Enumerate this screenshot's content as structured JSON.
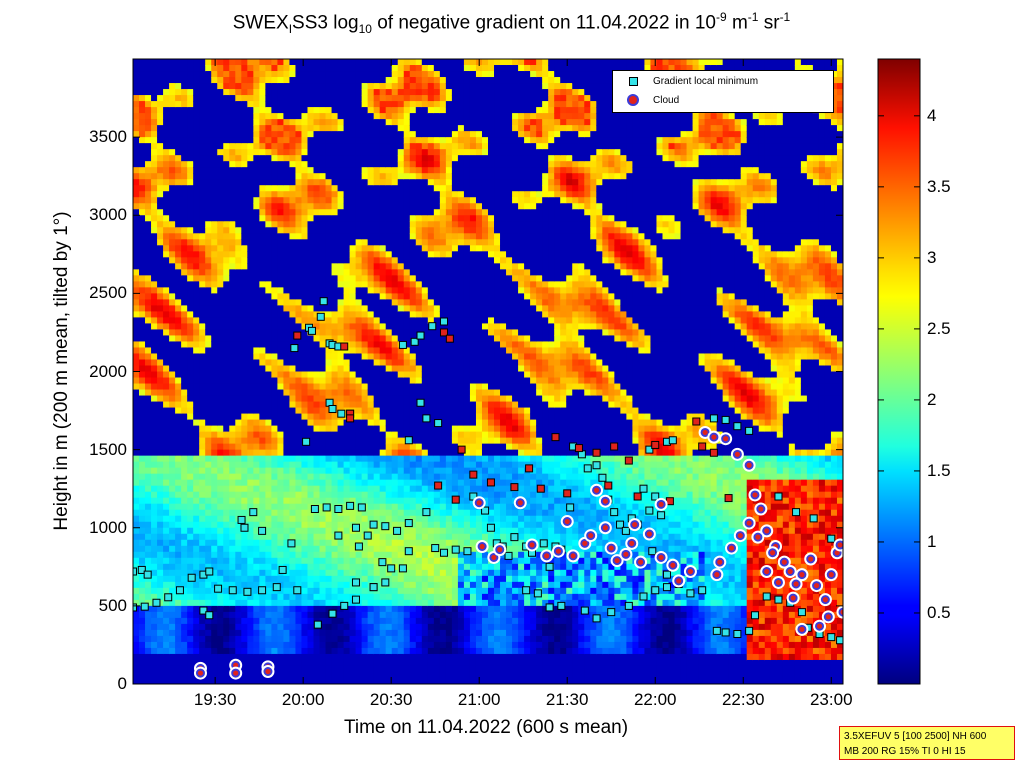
{
  "chart_data": [
    {
      "type": "heatmap",
      "title": {
        "p1": "SWEX",
        "sub1": "I",
        "p2": "SS3 log",
        "sub2": "10",
        "p3": " of negative gradient on 11.04.2022 in 10",
        "sup1": "-9",
        "p4": " m",
        "sup2": "-1",
        "p5": " sr",
        "sup3": "-1"
      },
      "xlabel": "Time on 11.04.2022 (600 s mean)",
      "ylabel": "Height in m (200 m mean, tilted by 1°)",
      "x_ticks": [
        "19:30",
        "20:00",
        "20:30",
        "21:00",
        "21:30",
        "22:00",
        "22:30",
        "23:00"
      ],
      "x_tick_minutes": [
        1170,
        1200,
        1230,
        1260,
        1290,
        1320,
        1350,
        1380
      ],
      "xlim_minutes": [
        1142,
        1384
      ],
      "y_ticks": [
        "0",
        "500",
        "1000",
        "1500",
        "2000",
        "2500",
        "3000",
        "3500"
      ],
      "y_tick_values": [
        0,
        500,
        1000,
        1500,
        2000,
        2500,
        3000,
        3500
      ],
      "ylim": [
        0,
        4000
      ],
      "colorbar": {
        "ticks": [
          "0.5",
          "1",
          "1.5",
          "2",
          "2.5",
          "3",
          "3.5",
          "4"
        ],
        "tick_values": [
          0.5,
          1,
          1.5,
          2,
          2.5,
          3,
          3.5,
          4
        ],
        "range": [
          0,
          4.4
        ],
        "colormap": "jet"
      },
      "legend": {
        "placement": "top-right",
        "entries": [
          {
            "label": "Gradient local minimum",
            "marker": "square",
            "color": "#35e3e8"
          },
          {
            "label": "Cloud",
            "marker": "circle",
            "color": "#e0231c"
          }
        ]
      },
      "series": [
        {
          "name": "Gradient local minimum",
          "points": [
            [
              1142,
              720
            ],
            [
              1145,
              730
            ],
            [
              1147,
              700
            ],
            [
              1142,
              490
            ],
            [
              1146,
              495
            ],
            [
              1150,
              520
            ],
            [
              1154,
              555
            ],
            [
              1158,
              600
            ],
            [
              1162,
              680
            ],
            [
              1166,
              700
            ],
            [
              1168,
              720
            ],
            [
              1171,
              610
            ],
            [
              1176,
              600
            ],
            [
              1181,
              590
            ],
            [
              1186,
              600
            ],
            [
              1191,
              620
            ],
            [
              1193,
              730
            ],
            [
              1166,
              470
            ],
            [
              1168,
              440
            ],
            [
              1179,
              1050
            ],
            [
              1180,
              1000
            ],
            [
              1186,
              980
            ],
            [
              1183,
              1100
            ],
            [
              1197,
              2150
            ],
            [
              1196,
              900
            ],
            [
              1198,
              600
            ],
            [
              1201,
              1550
            ],
            [
              1202,
              2280
            ],
            [
              1203,
              2260
            ],
            [
              1206,
              2350
            ],
            [
              1207,
              2450
            ],
            [
              1209,
              2180
            ],
            [
              1210,
              2170
            ],
            [
              1212,
              2160
            ],
            [
              1204,
              1120
            ],
            [
              1208,
              1130
            ],
            [
              1212,
              1120
            ],
            [
              1216,
              1140
            ],
            [
              1220,
              1130
            ],
            [
              1224,
              1020
            ],
            [
              1228,
              1010
            ],
            [
              1232,
              980
            ],
            [
              1236,
              1030
            ],
            [
              1209,
              1800
            ],
            [
              1210,
              1760
            ],
            [
              1213,
              1730
            ],
            [
              1216,
              1730
            ],
            [
              1218,
              1000
            ],
            [
              1219,
              880
            ],
            [
              1212,
              950
            ],
            [
              1222,
              950
            ],
            [
              1227,
              780
            ],
            [
              1218,
              650
            ],
            [
              1224,
              620
            ],
            [
              1228,
              650
            ],
            [
              1234,
              740
            ],
            [
              1230,
              740
            ],
            [
              1236,
              850
            ],
            [
              1205,
              380
            ],
            [
              1210,
              450
            ],
            [
              1214,
              500
            ],
            [
              1218,
              540
            ],
            [
              1224,
              620
            ],
            [
              1234,
              2170
            ],
            [
              1238,
              2190
            ],
            [
              1240,
              2230
            ],
            [
              1244,
              2290
            ],
            [
              1248,
              2320
            ],
            [
              1240,
              1800
            ],
            [
              1242,
              1700
            ],
            [
              1246,
              1670
            ],
            [
              1236,
              1560
            ],
            [
              1242,
              1100
            ],
            [
              1245,
              870
            ],
            [
              1248,
              840
            ],
            [
              1252,
              860
            ],
            [
              1256,
              850
            ],
            [
              1258,
              1200
            ],
            [
              1262,
              1110
            ],
            [
              1264,
              1000
            ],
            [
              1266,
              900
            ],
            [
              1268,
              880
            ],
            [
              1270,
              820
            ],
            [
              1272,
              940
            ],
            [
              1276,
              880
            ],
            [
              1278,
              840
            ],
            [
              1282,
              900
            ],
            [
              1284,
              750
            ],
            [
              1286,
              880
            ],
            [
              1288,
              860
            ],
            [
              1291,
              1130
            ],
            [
              1292,
              1520
            ],
            [
              1295,
              1470
            ],
            [
              1297,
              1380
            ],
            [
              1300,
              1400
            ],
            [
              1302,
              1320
            ],
            [
              1304,
              1180
            ],
            [
              1306,
              1100
            ],
            [
              1308,
              1020
            ],
            [
              1310,
              980
            ],
            [
              1312,
              1060
            ],
            [
              1314,
              1020
            ],
            [
              1318,
              1110
            ],
            [
              1322,
              1080
            ],
            [
              1320,
              1200
            ],
            [
              1316,
              1250
            ],
            [
              1318,
              1500
            ],
            [
              1324,
              1550
            ],
            [
              1326,
              1560
            ],
            [
              1322,
              820
            ],
            [
              1324,
              700
            ],
            [
              1319,
              850
            ],
            [
              1276,
              600
            ],
            [
              1280,
              580
            ],
            [
              1284,
              490
            ],
            [
              1288,
              500
            ],
            [
              1296,
              470
            ],
            [
              1300,
              420
            ],
            [
              1305,
              460
            ],
            [
              1311,
              500
            ],
            [
              1316,
              560
            ],
            [
              1320,
              600
            ],
            [
              1324,
              620
            ],
            [
              1328,
              640
            ],
            [
              1332,
              580
            ],
            [
              1336,
              600
            ],
            [
              1341,
              340
            ],
            [
              1344,
              330
            ],
            [
              1348,
              320
            ],
            [
              1352,
              340
            ],
            [
              1354,
              440
            ],
            [
              1358,
              560
            ],
            [
              1362,
              540
            ],
            [
              1366,
              520
            ],
            [
              1370,
              460
            ],
            [
              1372,
              360
            ],
            [
              1376,
              320
            ],
            [
              1380,
              300
            ],
            [
              1383,
              280
            ],
            [
              1340,
              1700
            ],
            [
              1344,
              1690
            ],
            [
              1348,
              1650
            ],
            [
              1352,
              1620
            ],
            [
              1362,
              1200
            ],
            [
              1368,
              1100
            ],
            [
              1374,
              1060
            ],
            [
              1380,
              930
            ]
          ]
        },
        {
          "name": "Cloud",
          "points": [
            [
              1165,
              100
            ],
            [
              1165,
              70
            ],
            [
              1177,
              120
            ],
            [
              1177,
              70
            ],
            [
              1188,
              110
            ],
            [
              1188,
              80
            ],
            [
              1260,
              1160
            ],
            [
              1261,
              880
            ],
            [
              1265,
              810
            ],
            [
              1267,
              860
            ],
            [
              1274,
              1160
            ],
            [
              1278,
              890
            ],
            [
              1283,
              820
            ],
            [
              1287,
              850
            ],
            [
              1290,
              1040
            ],
            [
              1292,
              820
            ],
            [
              1296,
              900
            ],
            [
              1298,
              950
            ],
            [
              1300,
              1240
            ],
            [
              1303,
              1170
            ],
            [
              1303,
              1000
            ],
            [
              1305,
              870
            ],
            [
              1307,
              790
            ],
            [
              1310,
              830
            ],
            [
              1312,
              900
            ],
            [
              1313,
              1020
            ],
            [
              1315,
              780
            ],
            [
              1318,
              960
            ],
            [
              1322,
              1150
            ],
            [
              1322,
              810
            ],
            [
              1326,
              760
            ],
            [
              1328,
              660
            ],
            [
              1332,
              720
            ],
            [
              1337,
              1610
            ],
            [
              1340,
              1580
            ],
            [
              1344,
              1570
            ],
            [
              1348,
              1470
            ],
            [
              1352,
              1400
            ],
            [
              1354,
              1210
            ],
            [
              1356,
              1120
            ],
            [
              1358,
              980
            ],
            [
              1361,
              880
            ],
            [
              1360,
              840
            ],
            [
              1364,
              780
            ],
            [
              1366,
              720
            ],
            [
              1362,
              650
            ],
            [
              1368,
              640
            ],
            [
              1370,
              700
            ],
            [
              1373,
              800
            ],
            [
              1375,
              630
            ],
            [
              1378,
              540
            ],
            [
              1380,
              700
            ],
            [
              1382,
              840
            ],
            [
              1383,
              890
            ],
            [
              1384,
              460
            ],
            [
              1379,
              430
            ],
            [
              1376,
              370
            ],
            [
              1370,
              350
            ],
            [
              1367,
              550
            ],
            [
              1358,
              720
            ],
            [
              1355,
              940
            ],
            [
              1352,
              1030
            ],
            [
              1349,
              950
            ],
            [
              1346,
              870
            ],
            [
              1342,
              780
            ],
            [
              1341,
              700
            ]
          ]
        },
        {
          "name": "Strong gradient points",
          "points": [
            [
              1214,
              2160
            ],
            [
              1216,
              1730
            ],
            [
              1248,
              2250
            ],
            [
              1252,
              1180
            ],
            [
              1254,
              1500
            ],
            [
              1258,
              1340
            ],
            [
              1272,
              1260
            ],
            [
              1277,
              1380
            ],
            [
              1290,
              1220
            ],
            [
              1294,
              1510
            ],
            [
              1300,
              1480
            ],
            [
              1306,
              1520
            ],
            [
              1311,
              1430
            ],
            [
              1314,
              1200
            ],
            [
              1320,
              1530
            ],
            [
              1325,
              1170
            ],
            [
              1334,
              1680
            ],
            [
              1336,
              1520
            ],
            [
              1340,
              1480
            ],
            [
              1345,
              1190
            ],
            [
              1281,
              1250
            ],
            [
              1264,
              1290
            ],
            [
              1198,
              2230
            ],
            [
              1216,
              1700
            ],
            [
              1250,
              2210
            ],
            [
              1246,
              1270
            ],
            [
              1286,
              1580
            ],
            [
              1304,
              1270
            ]
          ]
        }
      ]
    }
  ],
  "infobox": {
    "line1": "3.5XEFUV 5 [100 2500] NH 600",
    "line2": "MB 200 RG 15% TI 0 HI 15"
  }
}
